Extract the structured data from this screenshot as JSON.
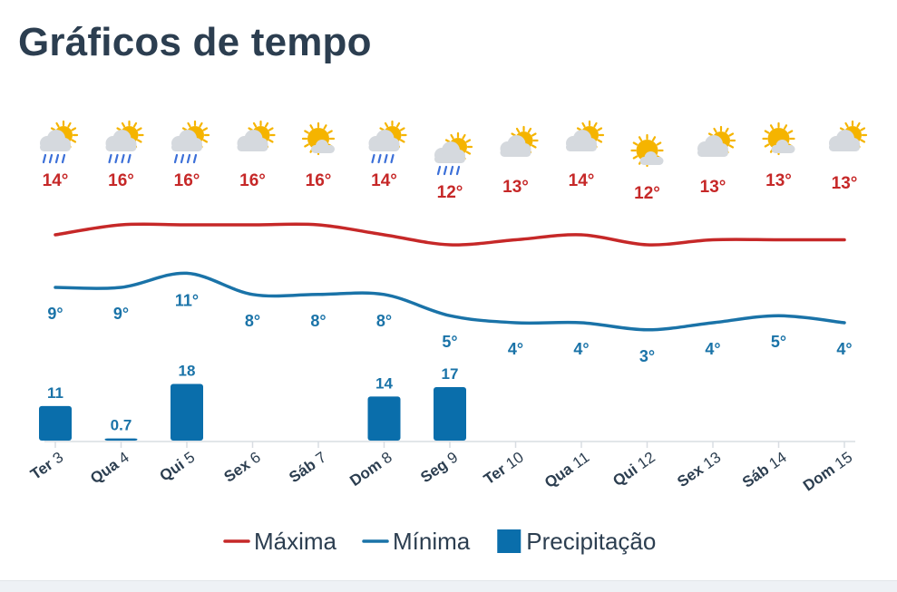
{
  "page": {
    "title": "Gráficos de tempo"
  },
  "icons": [
    "rain-icon",
    "rain-icon",
    "rain-icon",
    "partly-cloudy-icon",
    "sun-behind-cloud-icon",
    "rain-icon",
    "rain-icon",
    "partly-cloudy-icon",
    "partly-cloudy-icon",
    "sun-behind-cloud-icon",
    "partly-cloudy-icon",
    "sun-behind-cloud-icon",
    "partly-cloudy-icon"
  ],
  "colors": {
    "title": "#2c3e50",
    "max": "#c62828",
    "min": "#1a73a8",
    "precip": "#0a6eab",
    "axis": "#d8dde2",
    "sun": "#f5b400",
    "cloud": "#d5d9de",
    "rain": "#3b6fd8"
  },
  "chart_data": {
    "type": "line+bar",
    "categories": [
      "Ter 3",
      "Qua 4",
      "Qui 5",
      "Sex 6",
      "Sáb 7",
      "Dom 8",
      "Seg 9",
      "Ter 10",
      "Qua 11",
      "Qui 12",
      "Sex 13",
      "Sáb 14",
      "Dom 15"
    ],
    "series": [
      {
        "name": "Máxima",
        "type": "line",
        "values": [
          14,
          16,
          16,
          16,
          16,
          14,
          12,
          13,
          14,
          12,
          13,
          13,
          13
        ],
        "labels": [
          "14°",
          "16°",
          "16°",
          "16°",
          "16°",
          "14°",
          "12°",
          "13°",
          "14°",
          "12°",
          "13°",
          "13°",
          "13°"
        ]
      },
      {
        "name": "Mínima",
        "type": "line",
        "values": [
          9,
          9,
          11,
          8,
          8,
          8,
          5,
          4,
          4,
          3,
          4,
          5,
          4
        ],
        "labels": [
          "9°",
          "9°",
          "11°",
          "8°",
          "8°",
          "8°",
          "5°",
          "4°",
          "4°",
          "3°",
          "4°",
          "5°",
          "4°"
        ]
      },
      {
        "name": "Precipitação",
        "type": "bar",
        "values": [
          11,
          0.7,
          18,
          0,
          0,
          14,
          17,
          0,
          0,
          0,
          0,
          0,
          0
        ],
        "labels": [
          "11",
          "0.7",
          "18",
          "",
          "",
          "14",
          "17",
          "",
          "",
          "",
          "",
          "",
          ""
        ]
      }
    ],
    "legend": [
      {
        "name": "Máxima",
        "kind": "line"
      },
      {
        "name": "Mínima",
        "kind": "line"
      },
      {
        "name": "Precipitação",
        "kind": "box"
      }
    ],
    "legend_position": "bottom",
    "grid": false
  }
}
